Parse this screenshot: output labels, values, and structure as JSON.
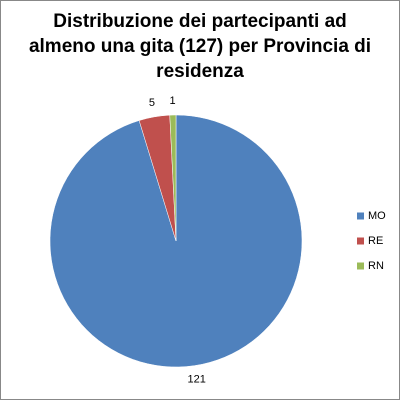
{
  "chart_data": {
    "type": "pie",
    "title": "Distribuzione dei partecipanti ad almeno una gita (127) per Provincia di residenza",
    "categories": [
      "MO",
      "RE",
      "RN"
    ],
    "values": [
      121,
      5,
      1
    ],
    "colors": [
      "#4f81bd",
      "#c0504d",
      "#9bbb59"
    ],
    "legend": "right"
  }
}
